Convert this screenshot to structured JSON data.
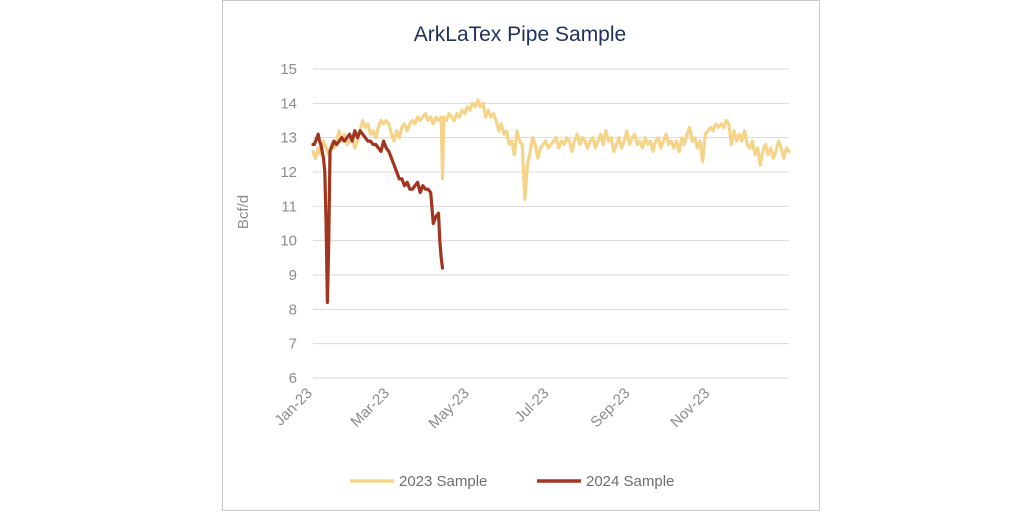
{
  "chart_data": {
    "type": "line",
    "title": "ArkLaTex Pipe Sample",
    "xlabel": "",
    "ylabel": "Bcf/d",
    "ylim": [
      6,
      15
    ],
    "yticks": [
      "6",
      "7",
      "8",
      "9",
      "10",
      "11",
      "12",
      "13",
      "14",
      "15"
    ],
    "xlim": [
      "2023-01-01",
      "2023-12-31"
    ],
    "xticks": [
      {
        "date": "2023-01-01",
        "label": "Jan-23"
      },
      {
        "date": "2023-03-01",
        "label": "Mar-23"
      },
      {
        "date": "2023-05-01",
        "label": "May-23"
      },
      {
        "date": "2023-07-01",
        "label": "Jul-23"
      },
      {
        "date": "2023-09-01",
        "label": "Sep-23"
      },
      {
        "date": "2023-11-01",
        "label": "Nov-23"
      }
    ],
    "grid": true,
    "legend_position": "bottom",
    "series": [
      {
        "name": "2023 Sample",
        "color": "#f5d48a",
        "points": [
          [
            "2023-01-01",
            12.6
          ],
          [
            "2023-01-03",
            12.4
          ],
          [
            "2023-01-05",
            12.7
          ],
          [
            "2023-01-07",
            12.5
          ],
          [
            "2023-01-09",
            12.9
          ],
          [
            "2023-01-11",
            12.7
          ],
          [
            "2023-01-13",
            12.5
          ],
          [
            "2023-01-15",
            12.8
          ],
          [
            "2023-01-17",
            12.7
          ],
          [
            "2023-01-19",
            12.9
          ],
          [
            "2023-01-21",
            13.2
          ],
          [
            "2023-01-23",
            12.9
          ],
          [
            "2023-01-25",
            13.1
          ],
          [
            "2023-01-27",
            12.8
          ],
          [
            "2023-01-29",
            12.9
          ],
          [
            "2023-01-31",
            13.0
          ],
          [
            "2023-02-02",
            12.7
          ],
          [
            "2023-02-04",
            12.9
          ],
          [
            "2023-02-06",
            13.2
          ],
          [
            "2023-02-08",
            13.5
          ],
          [
            "2023-02-10",
            13.3
          ],
          [
            "2023-02-12",
            13.4
          ],
          [
            "2023-02-14",
            13.1
          ],
          [
            "2023-02-16",
            13.2
          ],
          [
            "2023-02-18",
            13.0
          ],
          [
            "2023-02-20",
            13.3
          ],
          [
            "2023-02-22",
            13.5
          ],
          [
            "2023-02-24",
            13.4
          ],
          [
            "2023-02-26",
            13.5
          ],
          [
            "2023-02-28",
            13.4
          ],
          [
            "2023-03-02",
            13.1
          ],
          [
            "2023-03-04",
            12.9
          ],
          [
            "2023-03-06",
            13.2
          ],
          [
            "2023-03-08",
            13.0
          ],
          [
            "2023-03-10",
            13.3
          ],
          [
            "2023-03-12",
            13.4
          ],
          [
            "2023-03-14",
            13.2
          ],
          [
            "2023-03-16",
            13.4
          ],
          [
            "2023-03-18",
            13.5
          ],
          [
            "2023-03-20",
            13.4
          ],
          [
            "2023-03-22",
            13.6
          ],
          [
            "2023-03-24",
            13.5
          ],
          [
            "2023-03-26",
            13.6
          ],
          [
            "2023-03-28",
            13.7
          ],
          [
            "2023-03-30",
            13.5
          ],
          [
            "2023-04-01",
            13.6
          ],
          [
            "2023-04-03",
            13.4
          ],
          [
            "2023-04-05",
            13.6
          ],
          [
            "2023-04-07",
            13.5
          ],
          [
            "2023-04-09",
            13.6
          ],
          [
            "2023-04-10",
            11.8
          ],
          [
            "2023-04-11",
            13.6
          ],
          [
            "2023-04-13",
            13.5
          ],
          [
            "2023-04-15",
            13.7
          ],
          [
            "2023-04-17",
            13.6
          ],
          [
            "2023-04-19",
            13.5
          ],
          [
            "2023-04-21",
            13.7
          ],
          [
            "2023-04-23",
            13.6
          ],
          [
            "2023-04-25",
            13.8
          ],
          [
            "2023-04-27",
            13.7
          ],
          [
            "2023-04-29",
            13.9
          ],
          [
            "2023-05-01",
            13.8
          ],
          [
            "2023-05-03",
            14.0
          ],
          [
            "2023-05-05",
            13.9
          ],
          [
            "2023-05-07",
            14.1
          ],
          [
            "2023-05-09",
            13.9
          ],
          [
            "2023-05-11",
            14.0
          ],
          [
            "2023-05-13",
            13.6
          ],
          [
            "2023-05-15",
            13.8
          ],
          [
            "2023-05-17",
            13.6
          ],
          [
            "2023-05-19",
            13.7
          ],
          [
            "2023-05-21",
            13.5
          ],
          [
            "2023-05-23",
            13.2
          ],
          [
            "2023-05-25",
            13.4
          ],
          [
            "2023-05-27",
            13.1
          ],
          [
            "2023-05-29",
            13.2
          ],
          [
            "2023-05-31",
            12.8
          ],
          [
            "2023-06-02",
            12.9
          ],
          [
            "2023-06-04",
            12.5
          ],
          [
            "2023-06-06",
            13.2
          ],
          [
            "2023-06-08",
            12.9
          ],
          [
            "2023-06-10",
            12.8
          ],
          [
            "2023-06-12",
            11.2
          ],
          [
            "2023-06-14",
            12.2
          ],
          [
            "2023-06-16",
            12.6
          ],
          [
            "2023-06-18",
            13.0
          ],
          [
            "2023-06-20",
            12.8
          ],
          [
            "2023-06-22",
            12.4
          ],
          [
            "2023-06-24",
            12.7
          ],
          [
            "2023-06-26",
            12.8
          ],
          [
            "2023-06-28",
            12.9
          ],
          [
            "2023-06-30",
            12.7
          ],
          [
            "2023-07-02",
            12.8
          ],
          [
            "2023-07-04",
            12.9
          ],
          [
            "2023-07-06",
            13.0
          ],
          [
            "2023-07-08",
            12.7
          ],
          [
            "2023-07-10",
            12.9
          ],
          [
            "2023-07-12",
            12.8
          ],
          [
            "2023-07-14",
            13.0
          ],
          [
            "2023-07-16",
            12.9
          ],
          [
            "2023-07-18",
            12.6
          ],
          [
            "2023-07-20",
            12.9
          ],
          [
            "2023-07-22",
            13.1
          ],
          [
            "2023-07-24",
            12.8
          ],
          [
            "2023-07-26",
            13.0
          ],
          [
            "2023-07-28",
            12.9
          ],
          [
            "2023-07-30",
            12.7
          ],
          [
            "2023-08-01",
            12.9
          ],
          [
            "2023-08-03",
            13.0
          ],
          [
            "2023-08-05",
            12.7
          ],
          [
            "2023-08-07",
            12.9
          ],
          [
            "2023-08-09",
            13.1
          ],
          [
            "2023-08-11",
            12.8
          ],
          [
            "2023-08-13",
            13.2
          ],
          [
            "2023-08-15",
            12.9
          ],
          [
            "2023-08-17",
            13.0
          ],
          [
            "2023-08-19",
            12.6
          ],
          [
            "2023-08-21",
            12.8
          ],
          [
            "2023-08-23",
            13.0
          ],
          [
            "2023-08-25",
            12.7
          ],
          [
            "2023-08-27",
            12.9
          ],
          [
            "2023-08-29",
            13.2
          ],
          [
            "2023-08-31",
            12.8
          ],
          [
            "2023-09-02",
            13.0
          ],
          [
            "2023-09-04",
            13.1
          ],
          [
            "2023-09-06",
            12.8
          ],
          [
            "2023-09-08",
            12.9
          ],
          [
            "2023-09-10",
            12.7
          ],
          [
            "2023-09-12",
            13.0
          ],
          [
            "2023-09-14",
            12.8
          ],
          [
            "2023-09-16",
            12.9
          ],
          [
            "2023-09-18",
            12.6
          ],
          [
            "2023-09-20",
            12.9
          ],
          [
            "2023-09-22",
            13.0
          ],
          [
            "2023-09-24",
            12.7
          ],
          [
            "2023-09-26",
            12.9
          ],
          [
            "2023-09-28",
            13.1
          ],
          [
            "2023-09-30",
            12.8
          ],
          [
            "2023-10-02",
            12.9
          ],
          [
            "2023-10-04",
            12.7
          ],
          [
            "2023-10-06",
            12.9
          ],
          [
            "2023-10-08",
            12.6
          ],
          [
            "2023-10-10",
            13.0
          ],
          [
            "2023-10-12",
            12.8
          ],
          [
            "2023-10-14",
            13.1
          ],
          [
            "2023-10-16",
            13.3
          ],
          [
            "2023-10-18",
            12.9
          ],
          [
            "2023-10-20",
            13.0
          ],
          [
            "2023-10-22",
            12.7
          ],
          [
            "2023-10-24",
            12.9
          ],
          [
            "2023-10-26",
            12.3
          ],
          [
            "2023-10-28",
            13.1
          ],
          [
            "2023-10-30",
            13.2
          ],
          [
            "2023-11-01",
            13.3
          ],
          [
            "2023-11-03",
            13.2
          ],
          [
            "2023-11-05",
            13.4
          ],
          [
            "2023-11-07",
            13.3
          ],
          [
            "2023-11-09",
            13.4
          ],
          [
            "2023-11-11",
            13.3
          ],
          [
            "2023-11-13",
            13.5
          ],
          [
            "2023-11-15",
            13.4
          ],
          [
            "2023-11-17",
            12.8
          ],
          [
            "2023-11-19",
            13.2
          ],
          [
            "2023-11-21",
            12.9
          ],
          [
            "2023-11-23",
            13.1
          ],
          [
            "2023-11-25",
            12.9
          ],
          [
            "2023-11-27",
            13.2
          ],
          [
            "2023-11-29",
            12.8
          ],
          [
            "2023-12-01",
            12.7
          ],
          [
            "2023-12-03",
            12.9
          ],
          [
            "2023-12-05",
            12.5
          ],
          [
            "2023-12-07",
            12.7
          ],
          [
            "2023-12-09",
            12.2
          ],
          [
            "2023-12-11",
            12.6
          ],
          [
            "2023-12-13",
            12.8
          ],
          [
            "2023-12-15",
            12.5
          ],
          [
            "2023-12-17",
            12.7
          ],
          [
            "2023-12-19",
            12.4
          ],
          [
            "2023-12-21",
            12.6
          ],
          [
            "2023-12-23",
            12.9
          ],
          [
            "2023-12-25",
            12.7
          ],
          [
            "2023-12-27",
            12.4
          ],
          [
            "2023-12-29",
            12.7
          ],
          [
            "2023-12-31",
            12.6
          ]
        ]
      },
      {
        "name": "2024 Sample",
        "color": "#a23520",
        "points": [
          [
            "2023-01-01",
            12.8
          ],
          [
            "2023-01-02",
            12.8
          ],
          [
            "2023-01-03",
            12.9
          ],
          [
            "2023-01-04",
            13.0
          ],
          [
            "2023-01-05",
            13.1
          ],
          [
            "2023-01-06",
            12.9
          ],
          [
            "2023-01-07",
            12.8
          ],
          [
            "2023-01-08",
            12.6
          ],
          [
            "2023-01-09",
            12.4
          ],
          [
            "2023-01-10",
            12.0
          ],
          [
            "2023-01-11",
            10.5
          ],
          [
            "2023-01-12",
            8.2
          ],
          [
            "2023-01-13",
            9.9
          ],
          [
            "2023-01-14",
            12.6
          ],
          [
            "2023-01-15",
            12.7
          ],
          [
            "2023-01-17",
            12.9
          ],
          [
            "2023-01-19",
            12.8
          ],
          [
            "2023-01-21",
            12.9
          ],
          [
            "2023-01-23",
            13.0
          ],
          [
            "2023-01-25",
            12.9
          ],
          [
            "2023-01-27",
            13.0
          ],
          [
            "2023-01-29",
            13.1
          ],
          [
            "2023-01-31",
            12.9
          ],
          [
            "2023-02-02",
            13.2
          ],
          [
            "2023-02-04",
            13.0
          ],
          [
            "2023-02-06",
            13.2
          ],
          [
            "2023-02-08",
            13.1
          ],
          [
            "2023-02-10",
            13.0
          ],
          [
            "2023-02-12",
            12.9
          ],
          [
            "2023-02-14",
            12.9
          ],
          [
            "2023-02-16",
            12.8
          ],
          [
            "2023-02-18",
            12.8
          ],
          [
            "2023-02-20",
            12.7
          ],
          [
            "2023-02-22",
            12.6
          ],
          [
            "2023-02-24",
            12.9
          ],
          [
            "2023-02-26",
            12.7
          ],
          [
            "2023-02-28",
            12.6
          ],
          [
            "2023-03-02",
            12.4
          ],
          [
            "2023-03-04",
            12.2
          ],
          [
            "2023-03-06",
            12.0
          ],
          [
            "2023-03-08",
            11.8
          ],
          [
            "2023-03-10",
            11.8
          ],
          [
            "2023-03-12",
            11.6
          ],
          [
            "2023-03-14",
            11.7
          ],
          [
            "2023-03-16",
            11.5
          ],
          [
            "2023-03-18",
            11.5
          ],
          [
            "2023-03-20",
            11.6
          ],
          [
            "2023-03-22",
            11.7
          ],
          [
            "2023-03-24",
            11.4
          ],
          [
            "2023-03-26",
            11.6
          ],
          [
            "2023-03-28",
            11.5
          ],
          [
            "2023-03-30",
            11.5
          ],
          [
            "2023-04-01",
            11.4
          ],
          [
            "2023-04-03",
            10.5
          ],
          [
            "2023-04-05",
            10.7
          ],
          [
            "2023-04-07",
            10.8
          ],
          [
            "2023-04-08",
            10.0
          ],
          [
            "2023-04-09",
            9.5
          ],
          [
            "2023-04-10",
            9.2
          ]
        ]
      }
    ]
  }
}
